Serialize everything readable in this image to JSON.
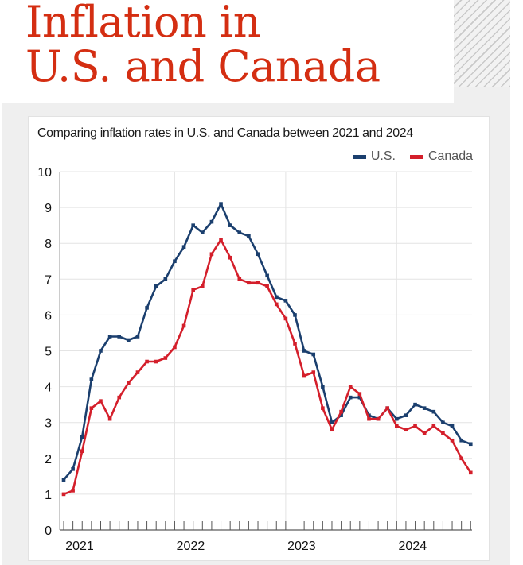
{
  "header": {
    "title_line1": "Inflation in",
    "title_line2": "U.S. and Canada"
  },
  "colors": {
    "title": "#d42e12",
    "us": "#1b3f6e",
    "canada": "#d41f2b"
  },
  "chart_data": {
    "type": "line",
    "title": "Comparing inflation rates in U.S. and Canada between 2021 and 2024",
    "xlabel": "",
    "ylabel": "",
    "ylim": [
      0,
      10
    ],
    "yticks": [
      "0",
      "1",
      "2",
      "3",
      "4",
      "5",
      "6",
      "7",
      "8",
      "9",
      "10"
    ],
    "xtick_labels": [
      "2021",
      "2022",
      "2023",
      "2024"
    ],
    "x_start": "2021-01",
    "x_end": "2024-09",
    "x_frequency": "monthly",
    "grid": true,
    "legend_position": "top-right",
    "series": [
      {
        "name": "U.S.",
        "color": "#1b3f6e",
        "values": [
          1.4,
          1.7,
          2.6,
          4.2,
          5.0,
          5.4,
          5.4,
          5.3,
          5.4,
          6.2,
          6.8,
          7.0,
          7.5,
          7.9,
          8.5,
          8.3,
          8.6,
          9.1,
          8.5,
          8.3,
          8.2,
          7.7,
          7.1,
          6.5,
          6.4,
          6.0,
          5.0,
          4.9,
          4.0,
          3.0,
          3.2,
          3.7,
          3.7,
          3.2,
          3.1,
          3.4,
          3.1,
          3.2,
          3.5,
          3.4,
          3.3,
          3.0,
          2.9,
          2.5,
          2.4
        ]
      },
      {
        "name": "Canada",
        "color": "#d41f2b",
        "values": [
          1.0,
          1.1,
          2.2,
          3.4,
          3.6,
          3.1,
          3.7,
          4.1,
          4.4,
          4.7,
          4.7,
          4.8,
          5.1,
          5.7,
          6.7,
          6.8,
          7.7,
          8.1,
          7.6,
          7.0,
          6.9,
          6.9,
          6.8,
          6.3,
          5.9,
          5.2,
          4.3,
          4.4,
          3.4,
          2.8,
          3.3,
          4.0,
          3.8,
          3.1,
          3.1,
          3.4,
          2.9,
          2.8,
          2.9,
          2.7,
          2.9,
          2.7,
          2.5,
          2.0,
          1.6
        ]
      }
    ]
  }
}
